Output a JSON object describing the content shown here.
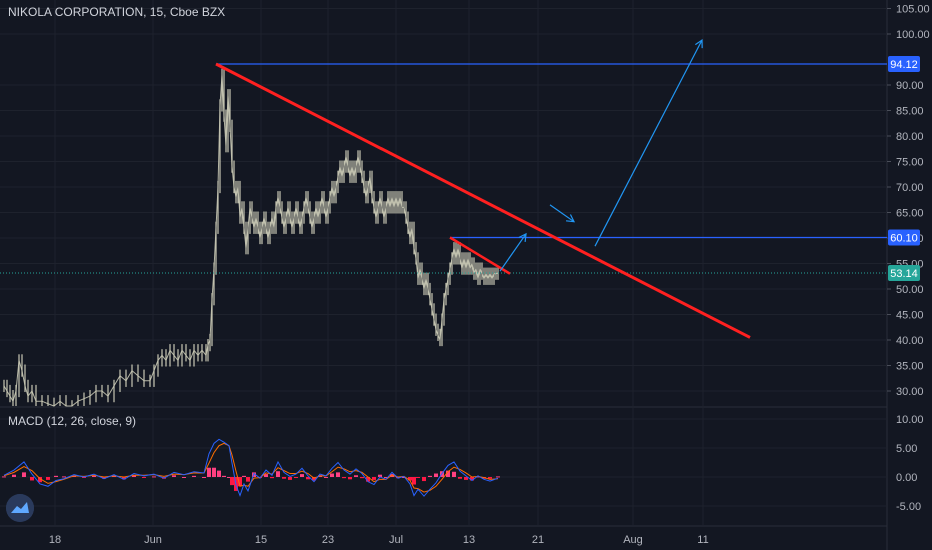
{
  "chart_title": "NIKOLA CORPORATION, 15, Cboe BZX",
  "chart_data": [
    {
      "type": "candlestick",
      "symbol": "NIKOLA CORPORATION",
      "interval": "15",
      "exchange": "Cboe BZX",
      "y_ticks": [
        "105.00",
        "100.00",
        "90.00",
        "85.00",
        "80.00",
        "75.00",
        "70.00",
        "65.00",
        "60.00",
        "55.00",
        "50.00",
        "45.00",
        "40.00",
        "35.00",
        "30.00"
      ],
      "ylim": [
        26,
        106
      ],
      "x_ticks": [
        "18",
        "Jun",
        "15",
        "23",
        "Jul",
        "13",
        "21",
        "Aug",
        "11"
      ],
      "price_labels": [
        {
          "value": "94.12",
          "color": "#2962ff"
        },
        {
          "value": "60.10",
          "color": "#2962ff"
        },
        {
          "value": "53.14",
          "color": "#26a69a"
        }
      ],
      "current_price": 53.14,
      "price_path": [
        [
          0,
          31
        ],
        [
          3,
          30
        ],
        [
          6,
          29
        ],
        [
          9,
          28
        ],
        [
          12,
          30
        ],
        [
          15,
          36
        ],
        [
          18,
          34
        ],
        [
          21,
          31
        ],
        [
          24,
          29
        ],
        [
          28,
          30
        ],
        [
          32,
          28
        ],
        [
          38,
          28
        ],
        [
          44,
          27.5
        ],
        [
          50,
          27
        ],
        [
          56,
          28
        ],
        [
          62,
          27
        ],
        [
          68,
          27
        ],
        [
          74,
          28
        ],
        [
          80,
          28.5
        ],
        [
          86,
          29
        ],
        [
          92,
          30
        ],
        [
          98,
          30
        ],
        [
          104,
          29
        ],
        [
          110,
          31
        ],
        [
          116,
          33
        ],
        [
          122,
          32
        ],
        [
          128,
          34
        ],
        [
          134,
          33
        ],
        [
          140,
          32
        ],
        [
          146,
          32
        ],
        [
          150,
          34
        ],
        [
          154,
          36
        ],
        [
          158,
          37
        ],
        [
          162,
          36
        ],
        [
          166,
          38
        ],
        [
          170,
          37
        ],
        [
          174,
          36
        ],
        [
          178,
          38
        ],
        [
          182,
          37
        ],
        [
          186,
          36
        ],
        [
          190,
          38
        ],
        [
          194,
          37
        ],
        [
          198,
          38
        ],
        [
          202,
          37
        ],
        [
          204,
          39
        ],
        [
          206,
          40
        ],
        [
          208,
          48
        ],
        [
          210,
          54
        ],
        [
          212,
          62
        ],
        [
          214,
          70
        ],
        [
          216,
          86
        ],
        [
          218,
          92
        ],
        [
          220,
          84
        ],
        [
          222,
          78
        ],
        [
          224,
          88
        ],
        [
          226,
          82
        ],
        [
          228,
          74
        ],
        [
          230,
          70
        ],
        [
          232,
          68
        ],
        [
          234,
          70
        ],
        [
          236,
          64
        ],
        [
          238,
          66
        ],
        [
          240,
          62
        ],
        [
          242,
          58
        ],
        [
          244,
          62
        ],
        [
          246,
          66
        ],
        [
          248,
          64
        ],
        [
          250,
          62
        ],
        [
          252,
          64
        ],
        [
          254,
          62
        ],
        [
          256,
          60
        ],
        [
          258,
          62
        ],
        [
          260,
          64
        ],
        [
          262,
          62
        ],
        [
          264,
          60
        ],
        [
          266,
          62
        ],
        [
          268,
          64
        ],
        [
          270,
          62
        ],
        [
          272,
          66
        ],
        [
          274,
          68
        ],
        [
          276,
          66
        ],
        [
          278,
          64
        ],
        [
          280,
          62
        ],
        [
          282,
          64
        ],
        [
          284,
          66
        ],
        [
          286,
          64
        ],
        [
          288,
          62
        ],
        [
          290,
          64
        ],
        [
          292,
          66
        ],
        [
          294,
          64
        ],
        [
          296,
          62
        ],
        [
          298,
          64
        ],
        [
          300,
          66
        ],
        [
          302,
          68
        ],
        [
          304,
          66
        ],
        [
          306,
          64
        ],
        [
          308,
          62
        ],
        [
          310,
          64
        ],
        [
          312,
          66
        ],
        [
          314,
          64
        ],
        [
          316,
          66
        ],
        [
          318,
          68
        ],
        [
          320,
          66
        ],
        [
          322,
          64
        ],
        [
          324,
          66
        ],
        [
          326,
          68
        ],
        [
          328,
          70
        ],
        [
          330,
          68
        ],
        [
          332,
          70
        ],
        [
          334,
          72
        ],
        [
          336,
          74
        ],
        [
          338,
          72
        ],
        [
          340,
          74
        ],
        [
          342,
          76
        ],
        [
          344,
          74
        ],
        [
          346,
          72
        ],
        [
          348,
          74
        ],
        [
          350,
          72
        ],
        [
          352,
          74
        ],
        [
          354,
          76
        ],
        [
          356,
          74
        ],
        [
          358,
          72
        ],
        [
          360,
          70
        ],
        [
          362,
          68
        ],
        [
          364,
          70
        ],
        [
          366,
          72
        ],
        [
          368,
          68
        ],
        [
          370,
          66
        ],
        [
          372,
          64
        ],
        [
          374,
          66
        ],
        [
          376,
          68
        ],
        [
          378,
          66
        ],
        [
          380,
          64
        ],
        [
          382,
          66
        ],
        [
          384,
          68
        ],
        [
          386,
          66
        ],
        [
          388,
          68
        ],
        [
          390,
          66
        ],
        [
          392,
          68
        ],
        [
          394,
          66
        ],
        [
          396,
          68
        ],
        [
          398,
          66
        ],
        [
          400,
          66
        ],
        [
          402,
          64
        ],
        [
          404,
          62
        ],
        [
          406,
          60
        ],
        [
          408,
          62
        ],
        [
          410,
          58
        ],
        [
          412,
          56
        ],
        [
          414,
          52
        ],
        [
          416,
          54
        ],
        [
          418,
          52
        ],
        [
          420,
          50
        ],
        [
          422,
          52
        ],
        [
          424,
          50
        ],
        [
          426,
          48
        ],
        [
          428,
          46
        ],
        [
          430,
          44
        ],
        [
          432,
          42
        ],
        [
          434,
          41
        ],
        [
          436,
          40
        ],
        [
          438,
          44
        ],
        [
          440,
          48
        ],
        [
          442,
          50
        ],
        [
          444,
          52
        ],
        [
          446,
          54
        ],
        [
          448,
          56
        ],
        [
          450,
          58
        ],
        [
          452,
          56
        ],
        [
          454,
          58
        ],
        [
          456,
          56
        ],
        [
          458,
          54
        ],
        [
          460,
          56
        ],
        [
          462,
          54
        ],
        [
          464,
          56
        ],
        [
          466,
          54
        ],
        [
          468,
          55
        ],
        [
          470,
          53
        ],
        [
          472,
          54
        ],
        [
          474,
          52
        ],
        [
          476,
          54
        ],
        [
          478,
          53
        ],
        [
          480,
          52
        ],
        [
          482,
          53
        ],
        [
          484,
          52
        ],
        [
          486,
          53
        ],
        [
          488,
          52
        ],
        [
          490,
          53
        ],
        [
          492,
          53
        ],
        [
          494,
          53.14
        ]
      ],
      "annotations": {
        "downtrend_line": {
          "from": [
            216,
            94.12
          ],
          "to": [
            750,
            40.5
          ],
          "color": "#ff2020"
        },
        "short_trend_line": {
          "from": [
            450,
            60.1
          ],
          "to": [
            510,
            53
          ],
          "color": "#ff2020"
        },
        "level_94": {
          "price": 94.12,
          "from_x": 216,
          "color": "#2962ff"
        },
        "level_60": {
          "price": 60.1,
          "from_x": 450,
          "color": "#2962ff"
        },
        "level_53": {
          "price": 53.14,
          "color": "#26a69a"
        },
        "arrows": [
          {
            "from": [
              500,
              53.5
            ],
            "to": [
              526,
              60.8
            ]
          },
          {
            "from": [
              550,
              66.5
            ],
            "to": [
              574,
              63.2
            ]
          },
          {
            "from": [
              595,
              58.4
            ],
            "to": [
              702,
              98.8
            ]
          }
        ]
      }
    },
    {
      "type": "macd",
      "label": "MACD (12, 26, close, 9)",
      "y_ticks": [
        "10.00",
        "5.00",
        "0.00",
        "-5.00"
      ],
      "ylim": [
        -7.5,
        11
      ],
      "macd_path": [
        [
          0,
          0.3
        ],
        [
          10,
          1.2
        ],
        [
          20,
          2.6
        ],
        [
          28,
          0.5
        ],
        [
          36,
          -1.2
        ],
        [
          44,
          -1.6
        ],
        [
          52,
          -0.6
        ],
        [
          60,
          -0.3
        ],
        [
          70,
          0.4
        ],
        [
          80,
          0
        ],
        [
          90,
          0.5
        ],
        [
          100,
          -0.3
        ],
        [
          110,
          0.4
        ],
        [
          120,
          -0.4
        ],
        [
          130,
          0.6
        ],
        [
          140,
          0.2
        ],
        [
          150,
          0.5
        ],
        [
          160,
          -0.2
        ],
        [
          170,
          0.8
        ],
        [
          180,
          0.4
        ],
        [
          190,
          0.9
        ],
        [
          200,
          0.7
        ],
        [
          205,
          4
        ],
        [
          210,
          5.8
        ],
        [
          215,
          6.5
        ],
        [
          220,
          6
        ],
        [
          225,
          5.4
        ],
        [
          228,
          2.4
        ],
        [
          232,
          -1.4
        ],
        [
          236,
          -3.2
        ],
        [
          240,
          -1.2
        ],
        [
          244,
          -2.4
        ],
        [
          250,
          0.6
        ],
        [
          256,
          -0.2
        ],
        [
          262,
          1.2
        ],
        [
          268,
          0.3
        ],
        [
          274,
          2.6
        ],
        [
          280,
          0.8
        ],
        [
          286,
          0.1
        ],
        [
          292,
          0.5
        ],
        [
          298,
          1.5
        ],
        [
          304,
          0.2
        ],
        [
          310,
          -0.8
        ],
        [
          316,
          0.5
        ],
        [
          322,
          0.2
        ],
        [
          328,
          1.5
        ],
        [
          334,
          2.5
        ],
        [
          340,
          1.2
        ],
        [
          346,
          0.5
        ],
        [
          352,
          1.4
        ],
        [
          358,
          0.6
        ],
        [
          364,
          -0.8
        ],
        [
          370,
          -1.3
        ],
        [
          376,
          0
        ],
        [
          382,
          -0.4
        ],
        [
          388,
          0.8
        ],
        [
          394,
          -0.2
        ],
        [
          400,
          0.1
        ],
        [
          406,
          -1.2
        ],
        [
          410,
          -3.2
        ],
        [
          414,
          -2.1
        ],
        [
          420,
          -3.3
        ],
        [
          426,
          -2.1
        ],
        [
          432,
          -1
        ],
        [
          438,
          0.6
        ],
        [
          444,
          2
        ],
        [
          450,
          2.6
        ],
        [
          456,
          1
        ],
        [
          462,
          0.2
        ],
        [
          468,
          -0.6
        ],
        [
          474,
          0.2
        ],
        [
          480,
          -0.4
        ],
        [
          486,
          -0.7
        ],
        [
          494,
          -0.2
        ]
      ],
      "signal_path": [
        [
          0,
          0.2
        ],
        [
          10,
          0.8
        ],
        [
          20,
          1.8
        ],
        [
          28,
          1.1
        ],
        [
          36,
          -0.3
        ],
        [
          44,
          -1.1
        ],
        [
          52,
          -0.8
        ],
        [
          60,
          -0.4
        ],
        [
          70,
          0.2
        ],
        [
          80,
          0.1
        ],
        [
          90,
          0.3
        ],
        [
          100,
          0
        ],
        [
          110,
          0.2
        ],
        [
          120,
          0
        ],
        [
          130,
          0.3
        ],
        [
          140,
          0.3
        ],
        [
          150,
          0.4
        ],
        [
          160,
          0.1
        ],
        [
          170,
          0.5
        ],
        [
          180,
          0.4
        ],
        [
          190,
          0.7
        ],
        [
          200,
          0.7
        ],
        [
          205,
          2.4
        ],
        [
          210,
          4.2
        ],
        [
          215,
          5.4
        ],
        [
          220,
          5.8
        ],
        [
          225,
          5.4
        ],
        [
          228,
          3.8
        ],
        [
          232,
          1
        ],
        [
          236,
          -1.6
        ],
        [
          240,
          -1.4
        ],
        [
          244,
          -1.6
        ],
        [
          250,
          -0.2
        ],
        [
          256,
          -0.1
        ],
        [
          262,
          0.7
        ],
        [
          268,
          0.5
        ],
        [
          274,
          1.6
        ],
        [
          280,
          1.1
        ],
        [
          286,
          0.6
        ],
        [
          292,
          0.6
        ],
        [
          298,
          1
        ],
        [
          304,
          0.6
        ],
        [
          310,
          -0.2
        ],
        [
          316,
          0.2
        ],
        [
          322,
          0.2
        ],
        [
          328,
          0.9
        ],
        [
          334,
          1.7
        ],
        [
          340,
          1.4
        ],
        [
          346,
          0.9
        ],
        [
          352,
          1.1
        ],
        [
          358,
          0.8
        ],
        [
          364,
          0
        ],
        [
          370,
          -0.8
        ],
        [
          376,
          -0.4
        ],
        [
          382,
          -0.4
        ],
        [
          388,
          0.3
        ],
        [
          394,
          0
        ],
        [
          400,
          0.1
        ],
        [
          406,
          -0.6
        ],
        [
          410,
          -1.9
        ],
        [
          414,
          -2
        ],
        [
          420,
          -2.6
        ],
        [
          426,
          -2.3
        ],
        [
          432,
          -1.6
        ],
        [
          438,
          -0.4
        ],
        [
          444,
          0.9
        ],
        [
          450,
          1.7
        ],
        [
          456,
          1.3
        ],
        [
          462,
          0.7
        ],
        [
          468,
          0
        ],
        [
          474,
          0.1
        ],
        [
          480,
          -0.1
        ],
        [
          486,
          -0.4
        ],
        [
          494,
          -0.3
        ]
      ],
      "line_colors": {
        "macd": "#2962ff",
        "signal": "#ff6d00",
        "histogram_neg": "#ff1744",
        "histogram_pos": "#ff4081"
      }
    }
  ],
  "colors": {
    "background": "#131722",
    "grid": "#1e222d",
    "axis_text": "#b2b5be",
    "candle": "#c8c8b4",
    "ma_green": "#26a69a",
    "trend_red": "#ff2020",
    "level_blue": "#2962ff",
    "arrow_blue": "#2196f3"
  },
  "logo_icon": "tradingview-logo-icon"
}
